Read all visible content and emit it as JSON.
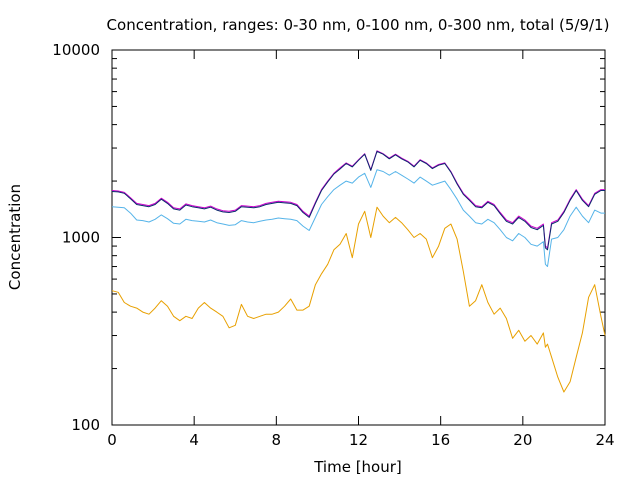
{
  "chart_data": {
    "type": "line",
    "title": "Concentration, ranges: 0-30 nm, 0-100 nm, 0-300 nm, total (5/9/1)",
    "xlabel": "Time [hour]",
    "ylabel": "Concentration",
    "xlim": [
      0,
      24
    ],
    "ylim": [
      100,
      10000
    ],
    "yscale": "log",
    "grid": false,
    "legend": "none",
    "xticks": [
      0,
      4,
      8,
      12,
      16,
      20,
      24
    ],
    "xtick_labels": [
      "0",
      "4",
      "8",
      "12",
      "16",
      "20",
      "24"
    ],
    "yticks": [
      100,
      1000,
      10000
    ],
    "ytick_labels": [
      "100",
      "1000",
      "10000"
    ],
    "series": [
      {
        "color": "#e8a000",
        "x": [
          0,
          0.3,
          0.6,
          0.9,
          1.2,
          1.5,
          1.8,
          2.1,
          2.4,
          2.7,
          3.0,
          3.3,
          3.6,
          3.9,
          4.2,
          4.5,
          4.8,
          5.1,
          5.4,
          5.7,
          6.0,
          6.3,
          6.6,
          6.9,
          7.2,
          7.5,
          7.8,
          8.1,
          8.4,
          8.7,
          9.0,
          9.3,
          9.6,
          9.9,
          10.2,
          10.5,
          10.8,
          11.1,
          11.4,
          11.7,
          12.0,
          12.3,
          12.6,
          12.9,
          13.2,
          13.5,
          13.8,
          14.1,
          14.4,
          14.7,
          15.0,
          15.3,
          15.6,
          15.9,
          16.2,
          16.5,
          16.8,
          17.1,
          17.4,
          17.7,
          18.0,
          18.3,
          18.6,
          18.9,
          19.2,
          19.5,
          19.8,
          20.1,
          20.4,
          20.7,
          21.0,
          21.1,
          21.2,
          21.4,
          21.7,
          22.0,
          22.3,
          22.6,
          22.9,
          23.2,
          23.5,
          23.8,
          24.0
        ],
        "values": [
          520,
          510,
          450,
          430,
          420,
          400,
          390,
          420,
          460,
          430,
          380,
          360,
          380,
          370,
          420,
          450,
          420,
          400,
          380,
          330,
          340,
          440,
          380,
          370,
          380,
          390,
          390,
          400,
          430,
          470,
          410,
          410,
          430,
          560,
          640,
          720,
          860,
          920,
          1050,
          780,
          1180,
          1380,
          1000,
          1450,
          1300,
          1200,
          1280,
          1200,
          1100,
          1000,
          1050,
          980,
          780,
          900,
          1120,
          1180,
          980,
          660,
          430,
          460,
          560,
          450,
          390,
          420,
          370,
          290,
          320,
          280,
          300,
          270,
          310,
          260,
          270,
          230,
          180,
          150,
          170,
          230,
          310,
          480,
          560,
          380,
          300
        ]
      },
      {
        "color": "#56b4e9",
        "x": [
          0,
          0.3,
          0.6,
          0.9,
          1.2,
          1.5,
          1.8,
          2.1,
          2.4,
          2.7,
          3.0,
          3.3,
          3.6,
          3.9,
          4.2,
          4.5,
          4.8,
          5.1,
          5.4,
          5.7,
          6.0,
          6.3,
          6.6,
          6.9,
          7.2,
          7.5,
          7.8,
          8.1,
          8.4,
          8.7,
          9.0,
          9.3,
          9.6,
          9.9,
          10.2,
          10.5,
          10.8,
          11.1,
          11.4,
          11.7,
          12.0,
          12.3,
          12.6,
          12.9,
          13.2,
          13.5,
          13.8,
          14.1,
          14.4,
          14.7,
          15.0,
          15.3,
          15.6,
          15.9,
          16.2,
          16.5,
          16.8,
          17.1,
          17.4,
          17.7,
          18.0,
          18.3,
          18.6,
          18.9,
          19.2,
          19.5,
          19.8,
          20.1,
          20.4,
          20.7,
          21.0,
          21.1,
          21.2,
          21.4,
          21.7,
          22.0,
          22.3,
          22.6,
          22.9,
          23.2,
          23.5,
          23.8,
          24.0
        ],
        "values": [
          1460,
          1450,
          1440,
          1350,
          1240,
          1230,
          1210,
          1250,
          1320,
          1260,
          1190,
          1180,
          1250,
          1230,
          1220,
          1210,
          1240,
          1200,
          1180,
          1160,
          1170,
          1230,
          1210,
          1200,
          1220,
          1240,
          1250,
          1270,
          1260,
          1250,
          1230,
          1150,
          1090,
          1280,
          1500,
          1650,
          1800,
          1900,
          2000,
          1950,
          2100,
          2200,
          1850,
          2300,
          2250,
          2150,
          2250,
          2150,
          2050,
          1950,
          2100,
          2000,
          1900,
          1950,
          2000,
          1800,
          1600,
          1400,
          1300,
          1200,
          1180,
          1250,
          1200,
          1100,
          1000,
          960,
          1050,
          1000,
          920,
          900,
          950,
          720,
          700,
          980,
          1000,
          1100,
          1300,
          1450,
          1300,
          1200,
          1400,
          1350,
          1350
        ]
      },
      {
        "color": "#cc00cc",
        "x": [
          0,
          0.3,
          0.6,
          0.9,
          1.2,
          1.5,
          1.8,
          2.1,
          2.4,
          2.7,
          3.0,
          3.3,
          3.6,
          3.9,
          4.2,
          4.5,
          4.8,
          5.1,
          5.4,
          5.7,
          6.0,
          6.3,
          6.6,
          6.9,
          7.2,
          7.5,
          7.8,
          8.1,
          8.4,
          8.7,
          9.0,
          9.3,
          9.6,
          9.9,
          10.2,
          10.5,
          10.8,
          11.1,
          11.4,
          11.7,
          12.0,
          12.3,
          12.6,
          12.9,
          13.2,
          13.5,
          13.8,
          14.1,
          14.4,
          14.7,
          15.0,
          15.3,
          15.6,
          15.9,
          16.2,
          16.5,
          16.8,
          17.1,
          17.4,
          17.7,
          18.0,
          18.3,
          18.6,
          18.9,
          19.2,
          19.5,
          19.8,
          20.1,
          20.4,
          20.7,
          21.0,
          21.1,
          21.2,
          21.4,
          21.7,
          22.0,
          22.3,
          22.6,
          22.9,
          23.2,
          23.5,
          23.8,
          24.0
        ],
        "values": [
          1780,
          1770,
          1740,
          1630,
          1520,
          1500,
          1480,
          1520,
          1620,
          1540,
          1440,
          1420,
          1510,
          1480,
          1460,
          1440,
          1470,
          1420,
          1390,
          1380,
          1400,
          1480,
          1470,
          1460,
          1480,
          1520,
          1540,
          1560,
          1550,
          1540,
          1500,
          1380,
          1300,
          1540,
          1800,
          2000,
          2200,
          2350,
          2500,
          2400,
          2600,
          2800,
          2300,
          2900,
          2800,
          2650,
          2780,
          2650,
          2550,
          2400,
          2600,
          2500,
          2350,
          2450,
          2500,
          2250,
          1950,
          1720,
          1600,
          1480,
          1460,
          1560,
          1500,
          1360,
          1240,
          1200,
          1300,
          1240,
          1150,
          1120,
          1180,
          900,
          880,
          1200,
          1240,
          1380,
          1600,
          1800,
          1600,
          1480,
          1720,
          1800,
          1800
        ]
      },
      {
        "color": "#0a2a6e",
        "x": [
          0,
          0.3,
          0.6,
          0.9,
          1.2,
          1.5,
          1.8,
          2.1,
          2.4,
          2.7,
          3.0,
          3.3,
          3.6,
          3.9,
          4.2,
          4.5,
          4.8,
          5.1,
          5.4,
          5.7,
          6.0,
          6.3,
          6.6,
          6.9,
          7.2,
          7.5,
          7.8,
          8.1,
          8.4,
          8.7,
          9.0,
          9.3,
          9.6,
          9.9,
          10.2,
          10.5,
          10.8,
          11.1,
          11.4,
          11.7,
          12.0,
          12.3,
          12.6,
          12.9,
          13.2,
          13.5,
          13.8,
          14.1,
          14.4,
          14.7,
          15.0,
          15.3,
          15.6,
          15.9,
          16.2,
          16.5,
          16.8,
          17.1,
          17.4,
          17.7,
          18.0,
          18.3,
          18.6,
          18.9,
          19.2,
          19.5,
          19.8,
          20.1,
          20.4,
          20.7,
          21.0,
          21.1,
          21.2,
          21.4,
          21.7,
          22.0,
          22.3,
          22.6,
          22.9,
          23.2,
          23.5,
          23.8,
          24.0
        ],
        "values": [
          1760,
          1750,
          1720,
          1610,
          1500,
          1480,
          1460,
          1500,
          1600,
          1520,
          1420,
          1400,
          1490,
          1460,
          1440,
          1420,
          1450,
          1400,
          1370,
          1360,
          1380,
          1460,
          1450,
          1440,
          1460,
          1500,
          1520,
          1540,
          1530,
          1520,
          1480,
          1360,
          1280,
          1520,
          1780,
          1980,
          2180,
          2320,
          2480,
          2380,
          2580,
          2780,
          2280,
          2880,
          2780,
          2630,
          2760,
          2630,
          2530,
          2380,
          2580,
          2480,
          2330,
          2430,
          2480,
          2230,
          1930,
          1700,
          1580,
          1460,
          1440,
          1540,
          1480,
          1340,
          1220,
          1180,
          1280,
          1220,
          1130,
          1100,
          1160,
          880,
          860,
          1180,
          1220,
          1360,
          1580,
          1780,
          1580,
          1460,
          1700,
          1780,
          1780
        ]
      }
    ]
  }
}
